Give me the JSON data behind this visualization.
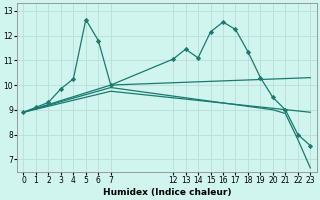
{
  "xlabel": "Humidex (Indice chaleur)",
  "background_color": "#cff5ee",
  "grid_color": "#bbddd8",
  "line_color": "#1a7a6e",
  "xlim": [
    -0.5,
    23.5
  ],
  "ylim": [
    6.5,
    13.3
  ],
  "yticks": [
    7,
    8,
    9,
    10,
    11,
    12,
    13
  ],
  "xtick_positions": [
    0,
    1,
    2,
    3,
    4,
    5,
    6,
    7,
    12,
    13,
    14,
    15,
    16,
    17,
    18,
    19,
    20,
    21,
    22,
    23
  ],
  "xtick_labels": [
    "0",
    "1",
    "2",
    "3",
    "4",
    "5",
    "6",
    "7",
    "12",
    "13",
    "14",
    "15",
    "16",
    "17",
    "18",
    "19",
    "20",
    "21",
    "22",
    "23"
  ],
  "lines": [
    {
      "x": [
        0,
        1,
        2,
        3,
        4,
        5,
        6,
        7,
        12,
        13,
        14,
        15,
        16,
        17,
        18,
        19,
        20,
        21,
        22,
        23
      ],
      "y": [
        8.9,
        9.1,
        9.3,
        9.85,
        10.25,
        12.65,
        11.8,
        10.0,
        11.05,
        11.45,
        11.1,
        12.15,
        12.55,
        12.25,
        11.35,
        10.3,
        9.5,
        9.0,
        8.0,
        7.55
      ],
      "marker": true
    },
    {
      "x": [
        0,
        7,
        23
      ],
      "y": [
        8.9,
        10.0,
        10.3
      ],
      "marker": false
    },
    {
      "x": [
        0,
        7,
        23
      ],
      "y": [
        8.9,
        9.75,
        8.9
      ],
      "marker": false
    },
    {
      "x": [
        0,
        7,
        20,
        21,
        22,
        23
      ],
      "y": [
        8.9,
        9.9,
        9.0,
        8.85,
        7.8,
        6.65
      ],
      "marker": false
    }
  ]
}
